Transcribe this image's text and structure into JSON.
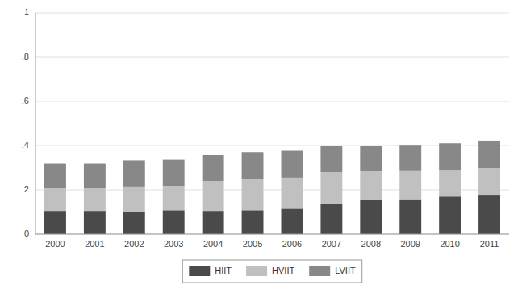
{
  "chart_data": {
    "type": "bar",
    "stacked": true,
    "categories": [
      "2000",
      "2001",
      "2002",
      "2003",
      "2004",
      "2005",
      "2006",
      "2007",
      "2008",
      "2009",
      "2010",
      "2011"
    ],
    "series": [
      {
        "name": "HIIT",
        "color": "#4a4a4a",
        "values": [
          0.105,
          0.105,
          0.1,
          0.108,
          0.105,
          0.108,
          0.115,
          0.135,
          0.155,
          0.158,
          0.17,
          0.178
        ]
      },
      {
        "name": "HVIIT",
        "color": "#c0c0c0",
        "values": [
          0.105,
          0.105,
          0.115,
          0.11,
          0.135,
          0.14,
          0.14,
          0.145,
          0.13,
          0.13,
          0.12,
          0.12
        ]
      },
      {
        "name": "LVIIT",
        "color": "#888888",
        "values": [
          0.108,
          0.108,
          0.118,
          0.118,
          0.12,
          0.122,
          0.125,
          0.118,
          0.115,
          0.115,
          0.12,
          0.124
        ]
      }
    ],
    "ylim": [
      0,
      1.0
    ],
    "yticks": [
      0,
      {
        "value": 0.2,
        "label": ".2"
      },
      {
        "value": 0.4,
        "label": ".4"
      },
      {
        "value": 0.6,
        "label": ".6"
      },
      {
        "value": 0.8,
        "label": ".8"
      },
      1
    ],
    "grid": true,
    "legend": "bottom"
  }
}
